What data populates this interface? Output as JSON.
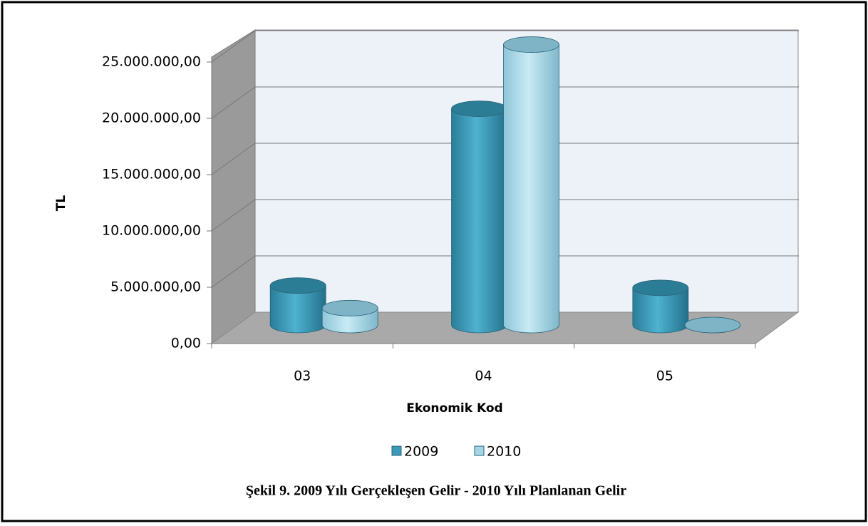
{
  "chart_data": {
    "type": "bar",
    "title": "Şekil 9. 2009 Yılı Gerçekleşen Gelir - 2010 Yılı Planlanan Gelir",
    "x_label": "Ekonomik Kod",
    "y_label": "TL",
    "categories": [
      "03",
      "04",
      "05"
    ],
    "series": [
      {
        "name": "2009",
        "color": "#3a9ab8",
        "values": [
          3500000,
          19200000,
          3300000
        ]
      },
      {
        "name": "2010",
        "color": "#a6d6e6",
        "values": [
          1500000,
          24900000,
          0
        ]
      }
    ],
    "ylim": [
      0,
      25000000
    ],
    "yticks": [
      {
        "value": 0,
        "label": "0,00"
      },
      {
        "value": 5000000,
        "label": "5.000.000,00"
      },
      {
        "value": 10000000,
        "label": "10.000.000,00"
      },
      {
        "value": 15000000,
        "label": "15.000.000,00"
      },
      {
        "value": 20000000,
        "label": "20.000.000,00"
      },
      {
        "value": 25000000,
        "label": "25.000.000,00"
      }
    ],
    "grid": true
  }
}
